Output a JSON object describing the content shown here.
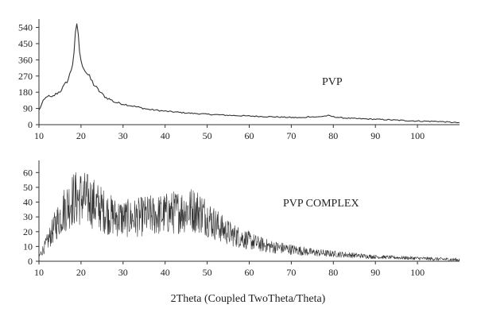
{
  "chart_data": [
    {
      "type": "line",
      "title": "",
      "xlabel": "",
      "ylabel": "",
      "xlim": [
        10,
        110
      ],
      "ylim": [
        0,
        560
      ],
      "x_ticks": [
        10,
        20,
        30,
        40,
        50,
        60,
        70,
        80,
        90,
        100
      ],
      "y_ticks": [
        0,
        90,
        180,
        270,
        360,
        450,
        540
      ],
      "annotation": "PVP",
      "grid": false,
      "series": [
        {
          "color": "#333333",
          "x": [
            10,
            11,
            12,
            13,
            14,
            15,
            16,
            17,
            17.5,
            18,
            18.4,
            18.7,
            19,
            19.3,
            19.6,
            20,
            20.5,
            21,
            22,
            23,
            24,
            25,
            26,
            27,
            28,
            30,
            32,
            34,
            36,
            38,
            40,
            45,
            50,
            55,
            60,
            65,
            70,
            73,
            74,
            76,
            78,
            79,
            80,
            82,
            85,
            90,
            95,
            100,
            105,
            110
          ],
          "y": [
            80,
            130,
            160,
            150,
            170,
            185,
            215,
            255,
            290,
            340,
            420,
            500,
            548,
            520,
            420,
            345,
            330,
            300,
            265,
            225,
            195,
            170,
            150,
            140,
            125,
            115,
            105,
            95,
            85,
            80,
            75,
            65,
            58,
            52,
            48,
            44,
            40,
            38,
            45,
            42,
            48,
            50,
            44,
            38,
            34,
            30,
            25,
            20,
            18,
            10
          ]
        }
      ]
    },
    {
      "type": "line",
      "title": "",
      "xlabel": "2Theta (Coupled TwoTheta/Theta)",
      "ylabel": "",
      "xlim": [
        10,
        110
      ],
      "ylim": [
        0,
        65
      ],
      "x_ticks": [
        10,
        20,
        30,
        40,
        50,
        60,
        70,
        80,
        90,
        100
      ],
      "y_ticks": [
        0,
        10,
        20,
        30,
        40,
        50,
        60
      ],
      "annotation": "PVP COMPLEX",
      "grid": false,
      "series": [
        {
          "color": "#333333",
          "x": [
            10,
            12,
            14,
            16,
            18,
            20,
            22,
            24,
            26,
            28,
            30,
            32,
            34,
            36,
            38,
            40,
            42,
            44,
            46,
            48,
            50,
            52,
            54,
            56,
            58,
            60,
            62,
            65,
            70,
            75,
            80,
            85,
            90,
            95,
            100,
            105,
            110
          ],
          "y": [
            3,
            13,
            25,
            35,
            42,
            43,
            41,
            37,
            33,
            30,
            29,
            29,
            30,
            31,
            31,
            32,
            33,
            34,
            35,
            34,
            30,
            25,
            21,
            18,
            16,
            14,
            12,
            10,
            8,
            6,
            5,
            4,
            3,
            2.5,
            2,
            1.5,
            1
          ]
        }
      ]
    }
  ]
}
